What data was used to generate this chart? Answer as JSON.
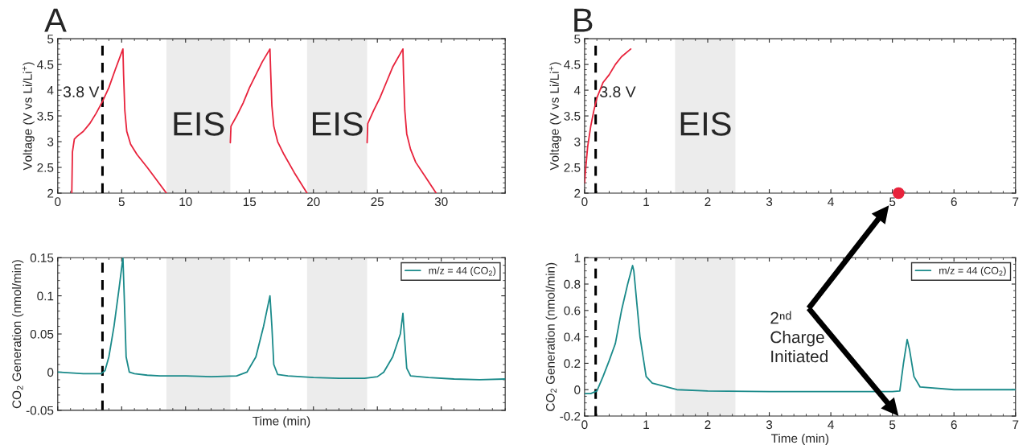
{
  "chart_data": [
    {
      "type": "line",
      "title": "A",
      "ylabel": "Voltage (V vs Li/Li$^{+}$)",
      "xlim": [
        0,
        35
      ],
      "xticks": [
        0,
        5,
        10,
        15,
        20,
        25,
        30
      ],
      "ylim": [
        2,
        5
      ],
      "yticks": [
        2,
        2.5,
        3,
        3.5,
        4,
        4.5,
        5
      ],
      "grid": false,
      "legend": false,
      "series": [
        {
          "color": "#e8233c",
          "x": [
            1.1,
            1.15,
            1.3,
            1.5,
            2.0,
            2.5,
            3.0,
            3.5,
            4.0,
            4.5,
            5.1,
            5.15,
            5.25,
            5.4,
            5.7,
            6.2,
            7.0,
            7.6,
            8.5,
            11,
            13.5,
            13.55,
            14.0,
            14.5,
            15.0,
            15.5,
            16.0,
            16.6,
            16.65,
            16.75,
            16.9,
            17.2,
            17.7,
            18.5,
            19.5,
            22,
            24.2,
            24.25,
            24.7,
            25.2,
            25.7,
            26.2,
            27.0,
            27.05,
            27.15,
            27.3,
            27.6,
            28.0,
            28.8,
            29.6
          ],
          "values": [
            2.0,
            2.8,
            3.05,
            3.1,
            3.2,
            3.35,
            3.55,
            3.78,
            4.05,
            4.4,
            4.8,
            4.3,
            3.6,
            3.2,
            2.95,
            2.75,
            2.5,
            2.3,
            2.0,
            null,
            2.98,
            3.3,
            3.5,
            3.75,
            4.05,
            4.3,
            4.55,
            4.8,
            4.4,
            3.7,
            3.3,
            3.0,
            2.75,
            2.4,
            2.0,
            null,
            2.98,
            3.35,
            3.6,
            3.85,
            4.15,
            4.45,
            4.8,
            4.3,
            3.6,
            3.15,
            2.85,
            2.6,
            2.3,
            2.0
          ]
        }
      ],
      "bands": [
        {
          "axis": "x",
          "from": 8.5,
          "to": 13.5,
          "label": "EIS",
          "color": "#ececec"
        },
        {
          "axis": "x",
          "from": 19.5,
          "to": 24.2,
          "label": "EIS",
          "color": "#ececec"
        }
      ],
      "ref_lines": [
        {
          "axis": "x",
          "value": 3.5,
          "color": "#000000",
          "line_style": "dashed"
        }
      ],
      "annotations": [
        {
          "text": "3.8 V",
          "x": 3.5,
          "y": 3.8
        }
      ]
    },
    {
      "type": "line",
      "xlabel": "Time (min)",
      "ylabel": "CO$_{2}$ Generation (nmol/min)",
      "xlim": [
        0,
        35
      ],
      "xticks": [
        0,
        5,
        10,
        15,
        20,
        25,
        30
      ],
      "ylim": [
        -0.05,
        0.15
      ],
      "yticks": [
        -0.05,
        0,
        0.05,
        0.1,
        0.15
      ],
      "grid": false,
      "legend": "top right",
      "tick_labels": "y",
      "series": [
        {
          "name": "m/z = 44 (CO$_{2}$)",
          "color": "#1a8a8a",
          "x": [
            0,
            1,
            2,
            3,
            3.4,
            3.7,
            4.0,
            4.4,
            4.8,
            5.1,
            5.2,
            5.35,
            5.6,
            6,
            7,
            8,
            10,
            12,
            14,
            14.8,
            15.5,
            16.1,
            16.6,
            16.75,
            16.9,
            17.2,
            18,
            20,
            22,
            24,
            25,
            25.5,
            26.2,
            26.8,
            27.0,
            27.15,
            27.3,
            27.6,
            29,
            31,
            33,
            35
          ],
          "values": [
            0.0,
            -0.001,
            -0.002,
            -0.002,
            -0.002,
            0.002,
            0.02,
            0.06,
            0.11,
            0.15,
            0.1,
            0.02,
            0.0,
            -0.002,
            -0.004,
            -0.005,
            -0.005,
            -0.006,
            -0.005,
            0.0,
            0.02,
            0.06,
            0.1,
            0.06,
            0.01,
            -0.003,
            -0.005,
            -0.007,
            -0.008,
            -0.008,
            -0.006,
            0.0,
            0.02,
            0.05,
            0.077,
            0.04,
            0.005,
            -0.005,
            -0.007,
            -0.009,
            -0.01,
            -0.009
          ]
        }
      ],
      "bands": [
        {
          "axis": "x",
          "from": 8.5,
          "to": 13.5,
          "color": "#ececec"
        },
        {
          "axis": "x",
          "from": 19.5,
          "to": 24.2,
          "color": "#ececec"
        }
      ],
      "ref_lines": [
        {
          "axis": "x",
          "value": 3.5,
          "color": "#000000",
          "line_style": "dashed"
        }
      ]
    },
    {
      "type": "line",
      "title": "B",
      "ylabel": "Voltage (V vs Li/Li$^{+}$)",
      "xlim": [
        0,
        7
      ],
      "xticks": [
        0,
        1,
        2,
        3,
        4,
        5,
        6,
        7
      ],
      "ylim": [
        2,
        5
      ],
      "yticks": [
        2,
        2.5,
        3,
        3.5,
        4,
        4.5,
        5
      ],
      "grid": false,
      "legend": false,
      "series": [
        {
          "color": "#e8233c",
          "x": [
            0,
            0.02,
            0.05,
            0.1,
            0.15,
            0.2,
            0.3,
            0.4,
            0.5,
            0.6,
            0.75
          ],
          "values": [
            2.2,
            2.5,
            2.9,
            3.3,
            3.6,
            3.85,
            4.15,
            4.3,
            4.5,
            4.65,
            4.8
          ]
        },
        {
          "type": "scatter",
          "color": "#e8233c",
          "x": [
            5.1
          ],
          "values": [
            2.0
          ]
        }
      ],
      "bands": [
        {
          "axis": "x",
          "from": 1.47,
          "to": 2.45,
          "label": "EIS",
          "color": "#ececec"
        }
      ],
      "ref_lines": [
        {
          "axis": "x",
          "value": 0.18,
          "color": "#000000",
          "line_style": "dashed"
        }
      ],
      "annotations": [
        {
          "text": "3.8 V",
          "x": 0.18,
          "y": 3.8
        }
      ]
    },
    {
      "type": "line",
      "xlabel": "Time (min)",
      "ylabel": "CO$_{2}$ Generation (nmol/min)",
      "xlim": [
        0,
        7
      ],
      "xticks": [
        0,
        1,
        2,
        3,
        4,
        5,
        6,
        7
      ],
      "ylim": [
        -0.2,
        1
      ],
      "yticks": [
        -0.2,
        0,
        0.2,
        0.4,
        0.6,
        0.8,
        1
      ],
      "grid": false,
      "legend": "top right",
      "series": [
        {
          "name": "m/z = 44 (CO$_{2}$)",
          "color": "#1a8a8a",
          "x": [
            0,
            0.1,
            0.2,
            0.3,
            0.4,
            0.5,
            0.6,
            0.7,
            0.78,
            0.8,
            0.9,
            1.0,
            1.1,
            1.5,
            2,
            3,
            4,
            5,
            5.12,
            5.18,
            5.24,
            5.28,
            5.35,
            5.45,
            6,
            7
          ],
          "values": [
            -0.03,
            -0.03,
            -0.01,
            0.1,
            0.22,
            0.35,
            0.6,
            0.8,
            0.94,
            0.9,
            0.4,
            0.1,
            0.05,
            0.0,
            -0.01,
            -0.015,
            -0.015,
            -0.015,
            -0.01,
            0.2,
            0.38,
            0.3,
            0.1,
            0.02,
            0.0,
            0.0
          ]
        }
      ],
      "bands": [
        {
          "axis": "x",
          "from": 1.47,
          "to": 2.45,
          "color": "#ececec"
        }
      ],
      "ref_lines": [
        {
          "axis": "x",
          "value": 0.18,
          "color": "#000000",
          "line_style": "dashed"
        }
      ],
      "annotations": [
        "2ⁿᵈ Charge Initiated"
      ]
    }
  ]
}
